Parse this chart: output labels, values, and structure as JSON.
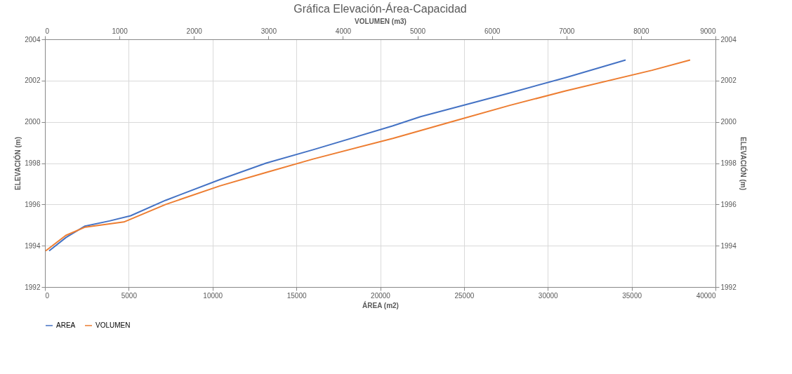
{
  "chart_data": {
    "type": "line",
    "title": "Gráfica Elevación-Área-Capacidad",
    "xlabel": "ÁREA (m2)",
    "x2label": "VOLUMEN  (m3)",
    "ylabel": "ELEVACIÓN (m)",
    "y2label": "ELEVACIÓN (m)",
    "xlim": [
      0,
      40000
    ],
    "xticks": [
      0,
      5000,
      10000,
      15000,
      20000,
      25000,
      30000,
      35000,
      40000
    ],
    "x2lim": [
      0,
      9000
    ],
    "x2ticks": [
      0,
      1000,
      2000,
      3000,
      4000,
      5000,
      6000,
      7000,
      8000,
      9000
    ],
    "ylim": [
      1992,
      2004
    ],
    "yticks": [
      1992,
      1994,
      1996,
      1998,
      2000,
      2002,
      2004
    ],
    "y2lim": [
      1992,
      2004
    ],
    "y2ticks": [
      1992,
      1994,
      1996,
      1998,
      2000,
      2002,
      2004
    ],
    "grid": true,
    "legend": "bottom",
    "line_style": "solid",
    "marker": "none",
    "series": [
      {
        "name": "AREA",
        "color": "#4472c4",
        "x": [
          250,
          1260,
          2390,
          3850,
          5110,
          7200,
          10430,
          13190,
          16000,
          20730,
          22410,
          27730,
          31080,
          34640
        ],
        "values": [
          1993.75,
          1994.4,
          1994.95,
          1995.2,
          1995.45,
          1996.2,
          1997.2,
          1998.0,
          1998.65,
          1999.8,
          2000.25,
          2001.4,
          2002.15,
          2003.0
        ]
      },
      {
        "name": "VOLUMEN",
        "color": "#ed7d31",
        "axis": "x2",
        "x": [
          10,
          280,
          540,
          1060,
          1620,
          2350,
          2970,
          3600,
          4670,
          5550,
          6240,
          6990,
          8150,
          8660
        ],
        "values": [
          1993.75,
          1994.5,
          1994.9,
          1995.15,
          1996.0,
          1996.9,
          1997.55,
          1998.2,
          1999.2,
          2000.1,
          2000.8,
          2001.5,
          2002.5,
          2003.0
        ]
      }
    ]
  }
}
